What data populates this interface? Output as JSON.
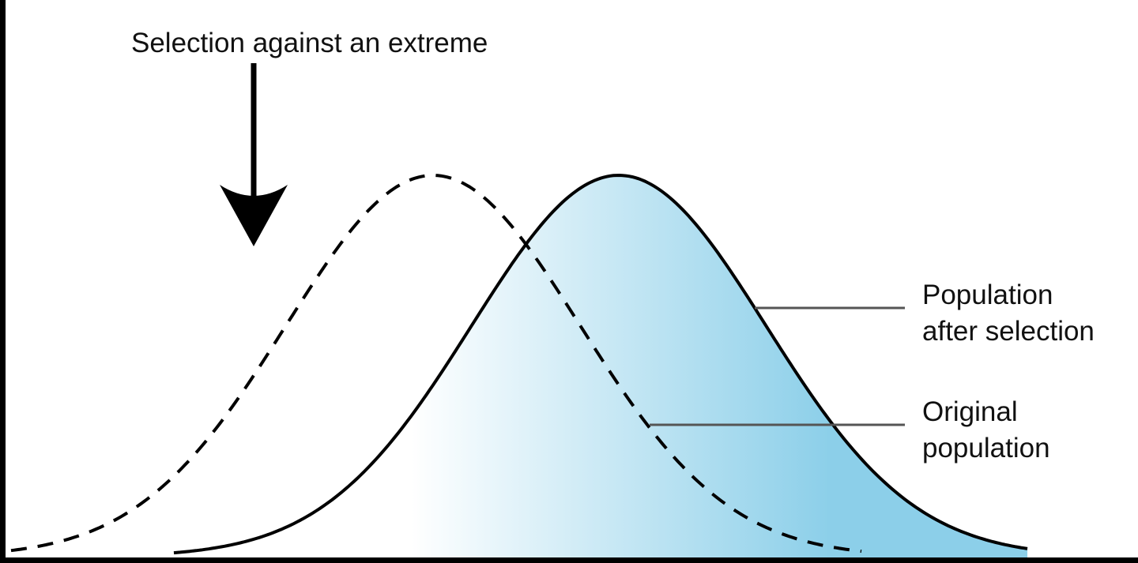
{
  "title": "Selection against an extreme",
  "labels": {
    "after_line1": "Population",
    "after_line2": "after selection",
    "original_line1": "Original",
    "original_line2": "population"
  },
  "colors": {
    "fill_start": "#ffffff",
    "fill_end": "#8ccfe9",
    "stroke": "#000000",
    "leader": "#555555"
  }
}
